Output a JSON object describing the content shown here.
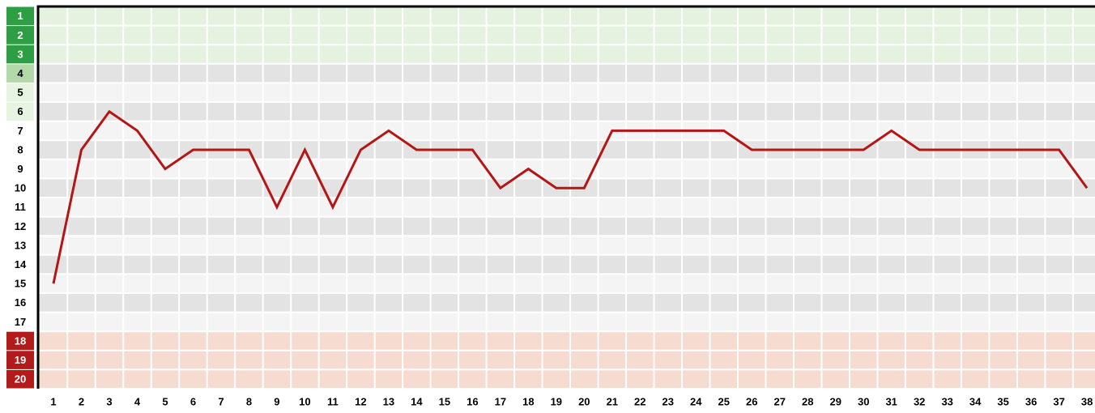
{
  "chart_data": {
    "type": "line",
    "x": [
      1,
      2,
      3,
      4,
      5,
      6,
      7,
      8,
      9,
      10,
      11,
      12,
      13,
      14,
      15,
      16,
      17,
      18,
      19,
      20,
      21,
      22,
      23,
      24,
      25,
      26,
      27,
      28,
      29,
      30,
      31,
      32,
      33,
      34,
      35,
      36,
      37,
      38
    ],
    "series": [
      {
        "color": "#b51515",
        "values": [
          15,
          8,
          6,
          7,
          9,
          8,
          8,
          8,
          11,
          8,
          11,
          8,
          7,
          8,
          8,
          8,
          10,
          9,
          10,
          10,
          7,
          7,
          7,
          7,
          7,
          8,
          8,
          8,
          8,
          8,
          7,
          8,
          8,
          8,
          8,
          8,
          8,
          10
        ]
      }
    ],
    "xlim": [
      1,
      38
    ],
    "xticks": [
      1,
      2,
      3,
      4,
      5,
      6,
      7,
      8,
      9,
      10,
      11,
      12,
      13,
      14,
      15,
      16,
      17,
      18,
      19,
      20,
      21,
      22,
      23,
      24,
      25,
      26,
      27,
      28,
      29,
      30,
      31,
      32,
      33,
      34,
      35,
      36,
      37,
      38
    ],
    "ylim": [
      1,
      20
    ],
    "yticks": [
      1,
      2,
      3,
      4,
      5,
      6,
      7,
      8,
      9,
      10,
      11,
      12,
      13,
      14,
      15,
      16,
      17,
      18,
      19,
      20
    ],
    "inverted_y": true,
    "zones": [
      {
        "from": 1,
        "to": 3,
        "label_fill": "#2e9e45",
        "label_text": "#ffffff",
        "row_fill": "#e6f2e0"
      },
      {
        "from": 4,
        "to": 4,
        "label_fill": "#b3d9ab",
        "label_text": "#000000",
        "row_fill": null
      },
      {
        "from": 5,
        "to": 6,
        "label_fill": "#e6f4e1",
        "label_text": "#000000",
        "row_fill": null
      },
      {
        "from": 18,
        "to": 20,
        "label_fill": "#b31b1b",
        "label_text": "#ffffff",
        "row_fill": "#f6dbd0"
      }
    ]
  }
}
